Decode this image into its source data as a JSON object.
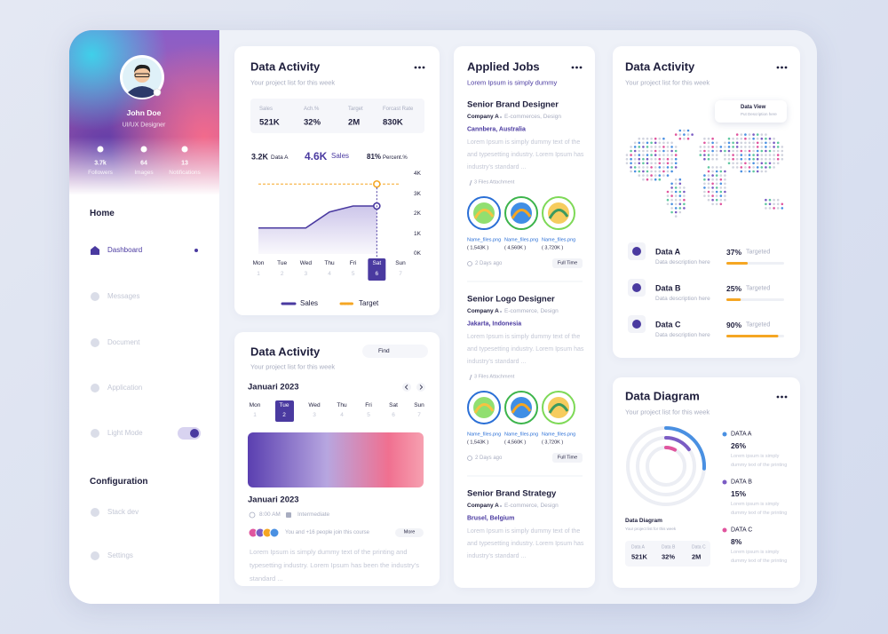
{
  "sidebar": {
    "profile": {
      "name": "John Doe",
      "role": "UI/UX Designer"
    },
    "stats": [
      {
        "value": "3.7k",
        "label": "Followers"
      },
      {
        "value": "64",
        "label": "Images"
      },
      {
        "value": "13",
        "label": "Notifications"
      }
    ],
    "home_heading": "Home",
    "menu": [
      "Dashboard",
      "Messages",
      "Document",
      "Application",
      "Light Mode"
    ],
    "config_heading": "Configuration",
    "config_menu": [
      "Stack dev",
      "Settings"
    ]
  },
  "activity_card": {
    "title": "Data Activity",
    "subtitle": "Your project list for this week",
    "stats": [
      {
        "label": "Sales",
        "value": "521K"
      },
      {
        "label": "Ach.%",
        "value": "32%"
      },
      {
        "label": "Target",
        "value": "2M"
      },
      {
        "label": "Forcast Rate",
        "value": "830K"
      }
    ],
    "summary": [
      {
        "value": "3.2K",
        "label": "Data A"
      },
      {
        "value": "4.6K",
        "label": "Sales"
      },
      {
        "value": "81%",
        "label": "Percent.%"
      }
    ],
    "chart": {
      "type": "line",
      "categories": [
        "Mon",
        "Tue",
        "Wed",
        "Thu",
        "Fri",
        "Sat",
        "Sun"
      ],
      "dates": [
        1,
        2,
        3,
        4,
        5,
        6,
        7
      ],
      "series": [
        {
          "name": "Sales",
          "color": "#4a3aa0",
          "values": [
            1300,
            1300,
            1300,
            2100,
            2400,
            2400,
            null
          ]
        },
        {
          "name": "Target",
          "color": "#f5a623",
          "values": [
            3500,
            3500,
            3500,
            3500,
            3500,
            3500,
            3500
          ]
        }
      ],
      "ylim": [
        0,
        4000
      ],
      "yticks": [
        {
          "value": 4000,
          "label": "4K"
        },
        {
          "value": 3000,
          "label": "3K"
        },
        {
          "value": 2000,
          "label": "2K"
        },
        {
          "value": 1000,
          "label": "1K"
        },
        {
          "value": 0,
          "label": "0K"
        }
      ]
    }
  },
  "course_card": {
    "title": "Data Activity",
    "subtitle": "Your project list for this week",
    "search": "Find",
    "month": "Januari 2023",
    "days": [
      "Mon",
      "Tue",
      "Wed",
      "Thu",
      "Fri",
      "Sat",
      "Sun"
    ],
    "dates": [
      1,
      2,
      3,
      4,
      5,
      6,
      7
    ],
    "event": {
      "title": "Januari 2023",
      "time": "8:00 AM",
      "level": "Intermediate",
      "attendees": "You and +16 people join this course",
      "button": "More",
      "description": "Lorem Ipsum is simply dummy text of the printing and typesetting industry. Lorem Ipsum has been the industry's standard ..."
    }
  },
  "jobs_card": {
    "title": "Applied Jobs",
    "subtitle": "Lorem Ipsum is simply dummy",
    "jobs": [
      {
        "title": "Senior Brand Designer",
        "company": "Company A",
        "field": "E-commerces, Design",
        "location": "Cannbera, Australia",
        "description": "Lorem Ipsum is simply dummy text of the and typesetting industry. Lorem Ipsum has industry's standard ...",
        "attachments": "3 Files Attachment",
        "files": [
          {
            "name": "Name_files.png",
            "size": "( 1,543K )"
          },
          {
            "name": "Name_files.png",
            "size": "( 4,560K )"
          },
          {
            "name": "Name_files.png",
            "size": "( 3,720K )"
          }
        ],
        "posted": "2 Days ago",
        "type": "Full Time"
      },
      {
        "title": "Senior Logo Designer",
        "company": "Company A",
        "field": "E-commerce, Design",
        "location": "Jakarta, Indonesia",
        "description": "Lorem Ipsum is simply dummy text of the and typesetting industry. Lorem Ipsum has industry's standard ...",
        "attachments": "3 Files Attachment",
        "files": [
          {
            "name": "Name_files.png",
            "size": "( 1,543K )"
          },
          {
            "name": "Name_files.png",
            "size": "( 4,560K )"
          },
          {
            "name": "Name_files.png",
            "size": "( 3,720K )"
          }
        ],
        "posted": "2 Days ago",
        "type": "Full Time"
      },
      {
        "title": "Senior Brand Strategy",
        "company": "Company A",
        "field": "E-commerce, Design",
        "location": "Brusel, Belgium",
        "description": "Lorem Ipsum is simply dummy text of the and typesetting industry. Lorem Ipsum has industry's standard ..."
      }
    ]
  },
  "map_card": {
    "title": "Data Activity",
    "subtitle": "Your project list for this week",
    "tooltip": {
      "title": "Data View",
      "text": "Put Description here"
    },
    "items": [
      {
        "name": "Data A",
        "description": "Data description here",
        "progress": {
          "value": 37,
          "label": "37%"
        },
        "status": "Targeted"
      },
      {
        "name": "Data B",
        "description": "Data description here",
        "progress": {
          "value": 25,
          "label": "25%"
        },
        "status": "Targeted"
      },
      {
        "name": "Data C",
        "description": "Data description here",
        "progress": {
          "value": 90,
          "label": "90%"
        },
        "status": "Targeted"
      }
    ]
  },
  "diagram_card": {
    "title": "Data Diagram",
    "subtitle": "Your project list for this week",
    "chart": {
      "type": "radial",
      "series": [
        {
          "name": "DATA A",
          "color": "#4a90e2",
          "value": 26,
          "value_label": "26%",
          "text": "Lorem ipsum is simply dummy text of the printing"
        },
        {
          "name": "DATA B",
          "color": "#7b5cc4",
          "value": 15,
          "value_label": "15%",
          "text": "Lorem ipsum is simply dummy text of the printing"
        },
        {
          "name": "DATA C",
          "color": "#e0559e",
          "value": 8,
          "value_label": "8%",
          "text": "Lorem ipsum is simply dummy text of the printing"
        }
      ]
    },
    "caption": "Data Diagram",
    "caption_sub": "Your project list for this week",
    "stats": [
      {
        "label": "Data A",
        "value": "521K"
      },
      {
        "label": "Data B",
        "value": "32%"
      },
      {
        "label": "Data C",
        "value": "2M"
      }
    ]
  }
}
